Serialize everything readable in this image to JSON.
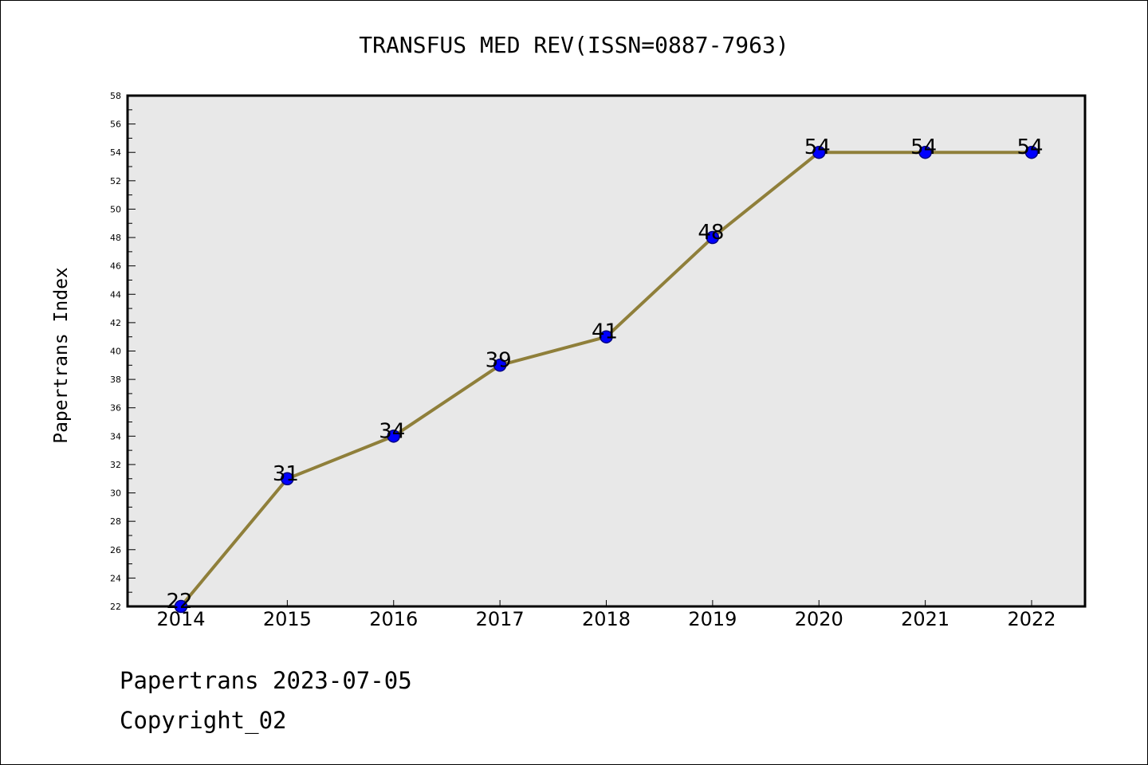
{
  "chart_data": {
    "type": "line",
    "title": "TRANSFUS MED REV(ISSN=0887-7963)",
    "xlabel": "",
    "ylabel": "Papertrans Index",
    "x": [
      "2014",
      "2015",
      "2016",
      "2017",
      "2018",
      "2019",
      "2020",
      "2021",
      "2022"
    ],
    "series": [
      {
        "values": [
          22,
          31,
          34,
          39,
          41,
          48,
          54,
          54,
          54
        ]
      }
    ],
    "ylim": [
      22,
      58
    ],
    "yticks": [
      "22",
      "24",
      "26",
      "28",
      "30",
      "32",
      "34",
      "36",
      "38",
      "40",
      "42",
      "44",
      "46",
      "48",
      "50",
      "52",
      "54",
      "56",
      "58"
    ],
    "grid": false,
    "data_labels": true,
    "colors": {
      "line": "#8f7f3a",
      "marker": "#0000ff",
      "marker_edge": "#000080",
      "plot_background": "#e8e8e8"
    }
  },
  "footer": {
    "source": "Papertrans 2023-07-05",
    "copyright": "Copyright_02"
  }
}
